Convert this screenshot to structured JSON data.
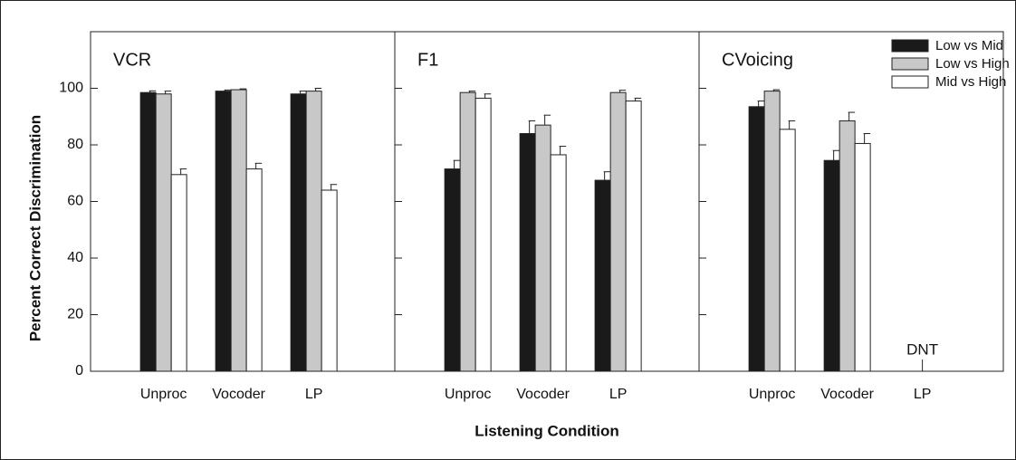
{
  "chart_data": {
    "type": "bar",
    "y_label": "Percent Correct Discrimination",
    "x_label": "Listening Condition",
    "ylim": [
      0,
      120
    ],
    "yticks": [
      0,
      20,
      40,
      60,
      80,
      100
    ],
    "legend": "upper right",
    "series": [
      {
        "name": "Low vs Mid",
        "color": "#1a1a1a"
      },
      {
        "name": "Low vs High",
        "color": "#c8c8c8"
      },
      {
        "name": "Mid vs High",
        "color": "#ffffff"
      }
    ],
    "panels": [
      {
        "title": "VCR",
        "categories": [
          "Unproc",
          "Vocoder",
          "LP"
        ],
        "values": [
          [
            98.5,
            99,
            98
          ],
          [
            98,
            99.5,
            99
          ],
          [
            69.5,
            71.5,
            64
          ]
        ],
        "errors": [
          [
            0.6,
            0.4,
            1
          ],
          [
            1,
            0.3,
            1
          ],
          [
            2,
            2,
            2
          ]
        ]
      },
      {
        "title": "F1",
        "categories": [
          "Unproc",
          "Vocoder",
          "LP"
        ],
        "values": [
          [
            71.5,
            84,
            67.5
          ],
          [
            98.5,
            87,
            98.5
          ],
          [
            96.5,
            76.5,
            95.5
          ]
        ],
        "errors": [
          [
            3,
            4.5,
            3
          ],
          [
            0.5,
            3.5,
            0.8
          ],
          [
            1.5,
            3,
            1
          ]
        ]
      },
      {
        "title": "CVoicing",
        "categories": [
          "Unproc",
          "Vocoder",
          "LP"
        ],
        "values": [
          [
            93.5,
            74.5,
            null
          ],
          [
            99,
            88.5,
            null
          ],
          [
            85.5,
            80.5,
            null
          ]
        ],
        "errors": [
          [
            2,
            3.5,
            null
          ],
          [
            0.5,
            3,
            null
          ],
          [
            3,
            3.5,
            null
          ]
        ],
        "annotation": "DNT"
      }
    ]
  }
}
